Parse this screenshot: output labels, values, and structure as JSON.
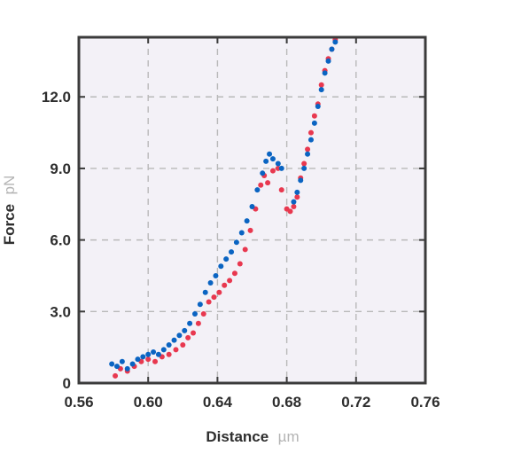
{
  "chart_data": {
    "type": "scatter",
    "title": "",
    "xlabel": "Distance",
    "xunit": "µm",
    "ylabel": "Force",
    "yunit": "pN",
    "xlim": [
      0.56,
      0.76
    ],
    "ylim": [
      0,
      14.5
    ],
    "xticks": [
      0.56,
      0.6,
      0.64,
      0.68,
      0.72,
      0.76
    ],
    "xtick_labels": [
      "0.56",
      "0.60",
      "0.64",
      "0.68",
      "0.72",
      "0.76"
    ],
    "yticks": [
      0,
      3.0,
      6.0,
      9.0,
      12.0
    ],
    "ytick_labels": [
      "0",
      "3.0",
      "6.0",
      "9.0",
      "12.0"
    ],
    "grid": true,
    "grid_style": "dashed",
    "legend": "none",
    "plot_background": "#f3f1f7",
    "series": [
      {
        "color": "#e8384f",
        "points": [
          [
            0.581,
            0.3
          ],
          [
            0.584,
            0.6
          ],
          [
            0.588,
            0.5
          ],
          [
            0.592,
            0.7
          ],
          [
            0.596,
            0.9
          ],
          [
            0.6,
            1.0
          ],
          [
            0.604,
            0.9
          ],
          [
            0.608,
            1.1
          ],
          [
            0.612,
            1.2
          ],
          [
            0.616,
            1.4
          ],
          [
            0.62,
            1.6
          ],
          [
            0.623,
            1.9
          ],
          [
            0.626,
            2.1
          ],
          [
            0.629,
            2.5
          ],
          [
            0.632,
            2.9
          ],
          [
            0.635,
            3.4
          ],
          [
            0.638,
            3.6
          ],
          [
            0.641,
            3.8
          ],
          [
            0.644,
            4.1
          ],
          [
            0.647,
            4.3
          ],
          [
            0.65,
            4.6
          ],
          [
            0.653,
            5.0
          ],
          [
            0.656,
            5.6
          ],
          [
            0.659,
            6.4
          ],
          [
            0.662,
            7.3
          ],
          [
            0.665,
            8.3
          ],
          [
            0.667,
            8.7
          ],
          [
            0.669,
            8.4
          ],
          [
            0.672,
            8.9
          ],
          [
            0.675,
            9.0
          ],
          [
            0.677,
            8.1
          ],
          [
            0.68,
            7.3
          ],
          [
            0.682,
            7.2
          ],
          [
            0.684,
            7.4
          ],
          [
            0.686,
            7.8
          ],
          [
            0.688,
            8.6
          ],
          [
            0.69,
            9.2
          ],
          [
            0.692,
            9.8
          ],
          [
            0.694,
            10.5
          ],
          [
            0.696,
            11.2
          ],
          [
            0.698,
            11.7
          ],
          [
            0.7,
            12.5
          ],
          [
            0.702,
            13.1
          ],
          [
            0.704,
            13.6
          ],
          [
            0.706,
            14.0
          ],
          [
            0.708,
            14.4
          ]
        ]
      },
      {
        "color": "#0a64c2",
        "points": [
          [
            0.579,
            0.8
          ],
          [
            0.582,
            0.7
          ],
          [
            0.585,
            0.9
          ],
          [
            0.588,
            0.6
          ],
          [
            0.591,
            0.8
          ],
          [
            0.594,
            1.0
          ],
          [
            0.597,
            1.1
          ],
          [
            0.6,
            1.2
          ],
          [
            0.603,
            1.3
          ],
          [
            0.606,
            1.2
          ],
          [
            0.609,
            1.4
          ],
          [
            0.612,
            1.6
          ],
          [
            0.615,
            1.8
          ],
          [
            0.618,
            2.0
          ],
          [
            0.621,
            2.2
          ],
          [
            0.624,
            2.5
          ],
          [
            0.627,
            2.9
          ],
          [
            0.63,
            3.3
          ],
          [
            0.633,
            3.8
          ],
          [
            0.636,
            4.2
          ],
          [
            0.639,
            4.5
          ],
          [
            0.642,
            4.9
          ],
          [
            0.645,
            5.2
          ],
          [
            0.648,
            5.5
          ],
          [
            0.651,
            5.9
          ],
          [
            0.654,
            6.3
          ],
          [
            0.657,
            6.8
          ],
          [
            0.66,
            7.4
          ],
          [
            0.663,
            8.1
          ],
          [
            0.666,
            8.8
          ],
          [
            0.668,
            9.3
          ],
          [
            0.67,
            9.6
          ],
          [
            0.672,
            9.4
          ],
          [
            0.675,
            9.2
          ],
          [
            0.677,
            9.0
          ],
          [
            0.684,
            7.6
          ],
          [
            0.686,
            8.0
          ],
          [
            0.688,
            8.5
          ],
          [
            0.69,
            9.0
          ],
          [
            0.692,
            9.6
          ],
          [
            0.694,
            10.2
          ],
          [
            0.696,
            10.9
          ],
          [
            0.698,
            11.6
          ],
          [
            0.7,
            12.3
          ],
          [
            0.702,
            13.0
          ],
          [
            0.704,
            13.5
          ],
          [
            0.706,
            14.0
          ],
          [
            0.708,
            14.3
          ]
        ]
      }
    ]
  }
}
